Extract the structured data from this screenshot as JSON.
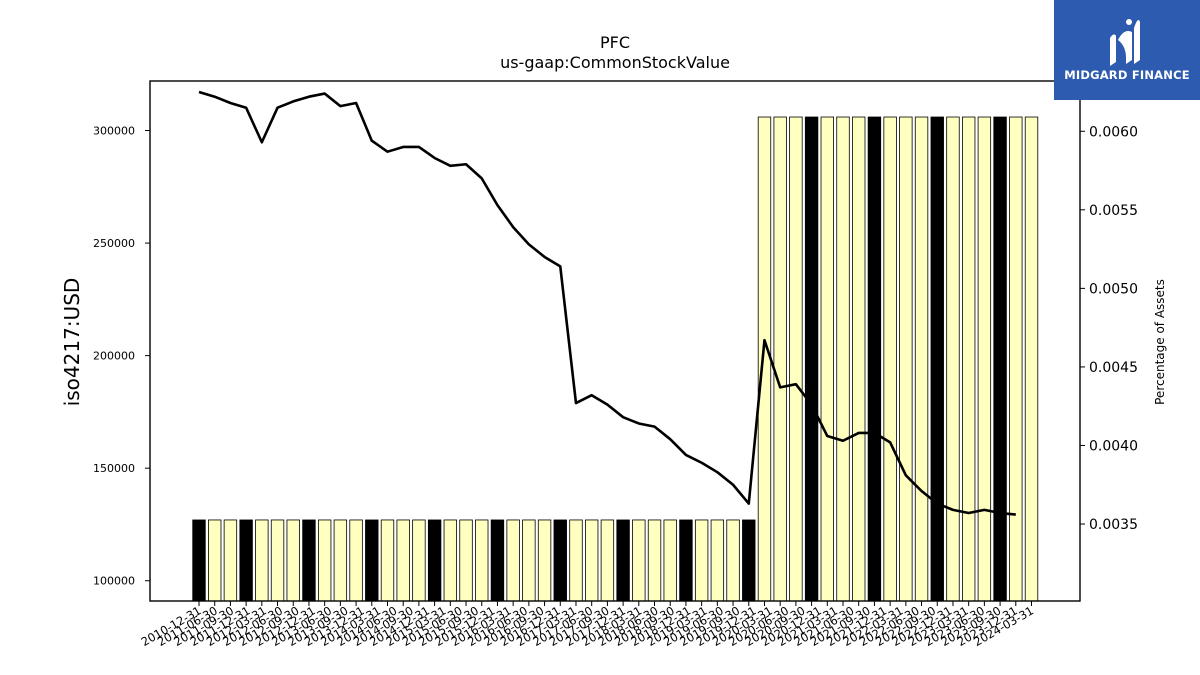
{
  "chart_data": {
    "type": "bar",
    "title": "PFC",
    "subtitle": "us-gaap:CommonStockValue",
    "ylabel": "iso4217:USD",
    "ylabel_right": "Percentage of Assets",
    "ylim": [
      91000,
      322000
    ],
    "y_ticks": [
      100000,
      150000,
      200000,
      250000,
      300000
    ],
    "ylim_right": [
      0.00301,
      0.00632
    ],
    "y_ticks_right": [
      "0.0035",
      "0.0040",
      "0.0045",
      "0.0050",
      "0.0055",
      "0.0060"
    ],
    "y_tick_values_right": [
      0.0035,
      0.004,
      0.0045,
      0.005,
      0.0055,
      0.006
    ],
    "colors": {
      "bar_highlight": "#000000",
      "bar_normal": "#ffffc0",
      "line": "#000000"
    },
    "categories": [
      "2010-12-31",
      "2011-03-31",
      "2011-06-30",
      "2011-09-30",
      "2011-12-31",
      "2012-03-31",
      "2012-06-30",
      "2012-09-30",
      "2012-12-31",
      "2013-03-31",
      "2013-06-30",
      "2013-09-30",
      "2013-12-31",
      "2014-03-31",
      "2014-06-30",
      "2014-09-30",
      "2014-12-31",
      "2015-03-31",
      "2015-06-30",
      "2015-09-30",
      "2015-12-31",
      "2016-03-31",
      "2016-06-30",
      "2016-09-30",
      "2016-12-31",
      "2017-03-31",
      "2017-06-30",
      "2017-09-30",
      "2017-12-31",
      "2018-03-31",
      "2018-06-30",
      "2018-09-30",
      "2018-12-31",
      "2019-03-31",
      "2019-06-30",
      "2019-09-30",
      "2019-12-31",
      "2020-03-31",
      "2020-06-30",
      "2020-09-30",
      "2020-12-31",
      "2021-03-31",
      "2021-06-30",
      "2021-09-30",
      "2021-12-31",
      "2022-03-31",
      "2022-06-30",
      "2022-09-30",
      "2022-12-31",
      "2023-03-31",
      "2023-06-30",
      "2023-09-30",
      "2023-12-31",
      "2024-03-31"
    ],
    "x_tick_labels": [
      "2010-12-31",
      "2011-06-30",
      "2011-09-30",
      "2011-12-31",
      "2012-03-31",
      "2012-06-30",
      "2012-09-30",
      "2012-12-31",
      "2013-06-30",
      "2013-09-30",
      "2013-12-31",
      "2014-03-31",
      "2014-06-30",
      "2014-09-30",
      "2014-12-31",
      "2015-03-31",
      "2015-06-30",
      "2015-09-30",
      "2015-12-31",
      "2016-03-31",
      "2016-06-30",
      "2016-09-30",
      "2016-12-31",
      "2017-03-31",
      "2017-06-30",
      "2017-09-30",
      "2017-12-31",
      "2018-03-31",
      "2018-06-30",
      "2018-09-30",
      "2018-12-31",
      "2019-03-31",
      "2019-06-30",
      "2019-09-30",
      "2019-12-31",
      "2020-03-31",
      "2020-06-30",
      "2020-09-30",
      "2020-12-31",
      "2021-03-31",
      "2021-06-30",
      "2021-09-30",
      "2021-12-31",
      "2022-03-31",
      "2022-06-30",
      "2022-09-30",
      "2022-12-31",
      "2023-03-31",
      "2023-06-30",
      "2023-09-30",
      "2023-12-31",
      "2024-03-31"
    ],
    "series": [
      {
        "type": "bar",
        "values": [
          127000,
          127000,
          127000,
          127000,
          127000,
          127000,
          127000,
          127000,
          127000,
          127000,
          127000,
          127000,
          127000,
          127000,
          127000,
          127000,
          127000,
          127000,
          127000,
          127000,
          127000,
          127000,
          127000,
          127000,
          127000,
          127000,
          127000,
          127000,
          127000,
          127000,
          127000,
          127000,
          127000,
          127000,
          127000,
          127000,
          306000,
          306000,
          306000,
          306000,
          306000,
          306000,
          306000,
          306000,
          306000,
          306000,
          306000,
          306000,
          306000,
          306000,
          306000,
          306000,
          306000,
          306000
        ],
        "highlight": [
          true,
          false,
          false,
          true,
          false,
          false,
          false,
          true,
          false,
          false,
          false,
          true,
          false,
          false,
          false,
          true,
          false,
          false,
          false,
          true,
          false,
          false,
          false,
          true,
          false,
          false,
          false,
          true,
          false,
          false,
          false,
          true,
          false,
          false,
          false,
          true,
          false,
          false,
          false,
          true,
          false,
          false,
          false,
          true,
          false,
          false,
          false,
          true,
          false,
          false,
          false,
          true,
          false,
          false
        ]
      },
      {
        "type": "line",
        "axis": "right",
        "values": [
          0.00625,
          0.00622,
          0.00618,
          0.00615,
          0.00593,
          0.00615,
          0.00619,
          0.00622,
          0.00624,
          0.00616,
          0.00618,
          0.00594,
          0.00587,
          0.0059,
          0.0059,
          0.00583,
          0.00578,
          0.00579,
          0.0057,
          0.00553,
          0.00539,
          0.00528,
          0.0052,
          0.00514,
          0.00427,
          0.00432,
          0.00426,
          0.00418,
          0.00414,
          0.00412,
          0.00404,
          0.00394,
          0.00389,
          0.00383,
          0.00375,
          0.00363,
          0.00467,
          0.00437,
          0.00439,
          0.00426,
          0.00406,
          0.00403,
          0.00408,
          0.00408,
          0.00402,
          0.00381,
          0.00371,
          0.00363,
          0.00359,
          0.00357,
          0.00359,
          0.00357,
          0.00356,
          null
        ]
      }
    ]
  },
  "logo": {
    "name": "midgard-finance-logo",
    "text": "MIDGARD FINANCE"
  }
}
